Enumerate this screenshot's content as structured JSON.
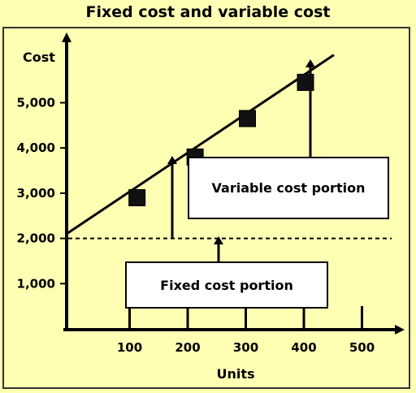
{
  "chart_data": {
    "type": "scatter",
    "title": "Fixed cost and variable cost",
    "xlabel": "Units",
    "ylabel": "Cost",
    "x_ticks": [
      100,
      200,
      300,
      400,
      500
    ],
    "y_ticks": [
      1000,
      2000,
      3000,
      4000,
      5000
    ],
    "y_tick_labels": [
      "1,000",
      "2,000",
      "3,000",
      "4,000",
      "5,000"
    ],
    "series": [
      {
        "x": [
          110,
          210,
          300,
          400
        ],
        "y": [
          2900,
          3800,
          4650,
          5450
        ]
      }
    ],
    "trend_line": {
      "intercept": 2100,
      "slope": 8.6
    },
    "fixed_cost_level": 2000,
    "annotations": {
      "variable": "Variable cost portion",
      "fixed": "Fixed cost portion"
    },
    "grid": false
  }
}
